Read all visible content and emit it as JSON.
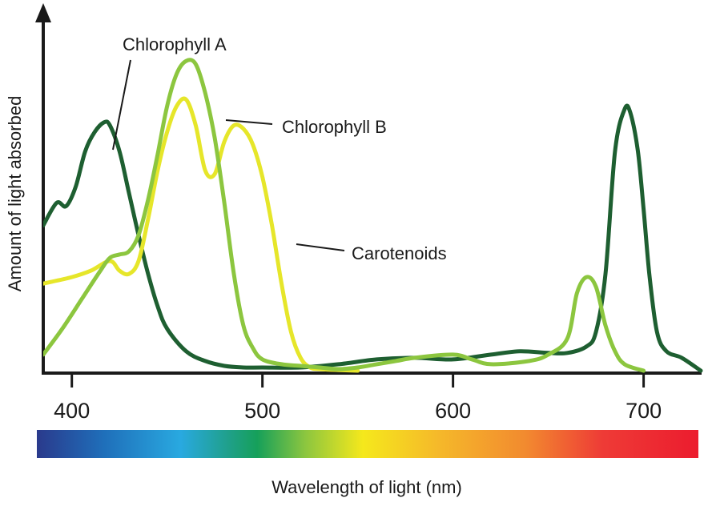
{
  "chart_data": {
    "type": "line",
    "title": "",
    "xlabel": "Wavelength of light (nm)",
    "ylabel": "Amount of light absorbed",
    "xlim": [
      385,
      730
    ],
    "ylim": [
      0,
      1
    ],
    "x_ticks": [
      400,
      500,
      600,
      700
    ],
    "y_ticks": [],
    "grid": false,
    "spectrum_bar": {
      "stops": [
        {
          "nm": 385,
          "color": "#2a3a8c"
        },
        {
          "nm": 420,
          "color": "#1f6fba"
        },
        {
          "nm": 460,
          "color": "#29a9e0"
        },
        {
          "nm": 485,
          "color": "#1fa08a"
        },
        {
          "nm": 500,
          "color": "#16a05a"
        },
        {
          "nm": 525,
          "color": "#8cc63f"
        },
        {
          "nm": 555,
          "color": "#f5e81c"
        },
        {
          "nm": 595,
          "color": "#f5b82a"
        },
        {
          "nm": 640,
          "color": "#f28a2f"
        },
        {
          "nm": 680,
          "color": "#ee3b36"
        },
        {
          "nm": 730,
          "color": "#ec1c2e"
        }
      ]
    },
    "series": [
      {
        "name": "Chlorophyll A",
        "color": "#1e5f31",
        "x": [
          385,
          392,
          397,
          402,
          407,
          412,
          417,
          420,
          425,
          430,
          435,
          440,
          445,
          450,
          460,
          470,
          480,
          490,
          500,
          520,
          540,
          560,
          580,
          600,
          620,
          635,
          650,
          660,
          670,
          675,
          680,
          685,
          690,
          693,
          697,
          700,
          703,
          707,
          712,
          720,
          730
        ],
        "y": [
          0.45,
          0.52,
          0.51,
          0.57,
          0.68,
          0.74,
          0.77,
          0.76,
          0.68,
          0.55,
          0.42,
          0.3,
          0.2,
          0.13,
          0.06,
          0.03,
          0.015,
          0.01,
          0.01,
          0.01,
          0.02,
          0.035,
          0.04,
          0.035,
          0.05,
          0.06,
          0.055,
          0.055,
          0.075,
          0.12,
          0.3,
          0.68,
          0.81,
          0.8,
          0.68,
          0.5,
          0.3,
          0.12,
          0.06,
          0.04,
          0.0
        ]
      },
      {
        "name": "Chlorophyll B",
        "color": "#8cc63f",
        "x": [
          385,
          395,
          405,
          415,
          420,
          425,
          430,
          435,
          440,
          445,
          450,
          455,
          460,
          465,
          470,
          475,
          480,
          485,
          490,
          495,
          500,
          510,
          520,
          530,
          540,
          550,
          560,
          570,
          580,
          600,
          610,
          620,
          640,
          650,
          660,
          665,
          670,
          675,
          680,
          685,
          690,
          700
        ],
        "y": [
          0.05,
          0.13,
          0.22,
          0.31,
          0.35,
          0.36,
          0.37,
          0.42,
          0.53,
          0.67,
          0.82,
          0.92,
          0.96,
          0.95,
          0.86,
          0.72,
          0.52,
          0.3,
          0.14,
          0.07,
          0.035,
          0.02,
          0.015,
          0.01,
          0.005,
          0.01,
          0.02,
          0.03,
          0.04,
          0.05,
          0.035,
          0.02,
          0.03,
          0.05,
          0.1,
          0.24,
          0.29,
          0.26,
          0.14,
          0.06,
          0.02,
          0.0
        ]
      },
      {
        "name": "Carotenoids",
        "color": "#e6e62a",
        "x": [
          385,
          400,
          410,
          420,
          425,
          430,
          435,
          440,
          445,
          450,
          455,
          460,
          465,
          470,
          475,
          480,
          485,
          490,
          495,
          500,
          505,
          510,
          515,
          520,
          525,
          530,
          540,
          550
        ],
        "y": [
          0.27,
          0.29,
          0.31,
          0.34,
          0.31,
          0.3,
          0.34,
          0.47,
          0.62,
          0.74,
          0.82,
          0.84,
          0.76,
          0.62,
          0.61,
          0.71,
          0.76,
          0.75,
          0.7,
          0.6,
          0.45,
          0.27,
          0.12,
          0.04,
          0.01,
          0.005,
          0.002,
          0.0
        ]
      }
    ],
    "annotations": [
      {
        "text": "Chlorophyll A",
        "series": "Chlorophyll A"
      },
      {
        "text": "Chlorophyll B",
        "series": "Chlorophyll B"
      },
      {
        "text": "Carotenoids",
        "series": "Carotenoids"
      }
    ]
  }
}
